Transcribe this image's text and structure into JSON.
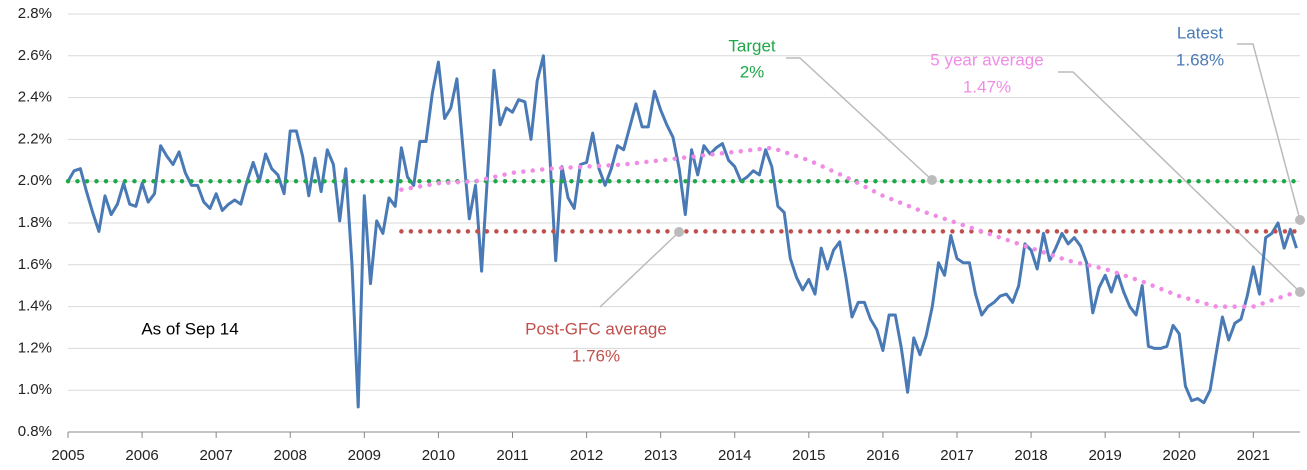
{
  "chart_data": {
    "type": "line",
    "xlim": [
      2005,
      2021.63
    ],
    "xticks": [
      2005,
      2006,
      2007,
      2008,
      2009,
      2010,
      2011,
      2012,
      2013,
      2014,
      2015,
      2016,
      2017,
      2018,
      2019,
      2020,
      2021
    ],
    "ylim": [
      0.8,
      2.8
    ],
    "yticks": [
      {
        "value": 0.8,
        "label": "0.8%"
      },
      {
        "value": 1.0,
        "label": "1.0%"
      },
      {
        "value": 1.2,
        "label": "1.2%"
      },
      {
        "value": 1.4,
        "label": "1.4%"
      },
      {
        "value": 1.6,
        "label": "1.6%"
      },
      {
        "value": 1.8,
        "label": "1.8%"
      },
      {
        "value": 2.0,
        "label": "2.0%"
      },
      {
        "value": 2.2,
        "label": "2.2%"
      },
      {
        "value": 2.4,
        "label": "2.4%"
      },
      {
        "value": 2.6,
        "label": "2.6%"
      },
      {
        "value": 2.8,
        "label": "2.8%"
      }
    ],
    "grid": true,
    "series": [
      {
        "color": "#4a7ab5",
        "style": "solid",
        "x": [
          2005,
          2005.083,
          2005.167,
          2005.25,
          2005.333,
          2005.417,
          2005.5,
          2005.583,
          2005.667,
          2005.75,
          2005.833,
          2005.917,
          2006,
          2006.083,
          2006.167,
          2006.25,
          2006.333,
          2006.417,
          2006.5,
          2006.583,
          2006.667,
          2006.75,
          2006.833,
          2006.917,
          2007,
          2007.083,
          2007.167,
          2007.25,
          2007.333,
          2007.417,
          2007.5,
          2007.583,
          2007.667,
          2007.75,
          2007.833,
          2007.917,
          2008,
          2008.083,
          2008.167,
          2008.25,
          2008.333,
          2008.417,
          2008.5,
          2008.583,
          2008.667,
          2008.75,
          2008.833,
          2008.917,
          2009,
          2009.083,
          2009.167,
          2009.25,
          2009.333,
          2009.417,
          2009.5,
          2009.583,
          2009.667,
          2009.75,
          2009.833,
          2009.917,
          2010,
          2010.083,
          2010.167,
          2010.25,
          2010.333,
          2010.417,
          2010.5,
          2010.583,
          2010.667,
          2010.75,
          2010.833,
          2010.917,
          2011,
          2011.083,
          2011.167,
          2011.25,
          2011.333,
          2011.417,
          2011.5,
          2011.583,
          2011.667,
          2011.75,
          2011.833,
          2011.917,
          2012,
          2012.083,
          2012.167,
          2012.25,
          2012.333,
          2012.417,
          2012.5,
          2012.583,
          2012.667,
          2012.75,
          2012.833,
          2012.917,
          2013,
          2013.083,
          2013.167,
          2013.25,
          2013.333,
          2013.417,
          2013.5,
          2013.583,
          2013.667,
          2013.75,
          2013.833,
          2013.917,
          2014,
          2014.083,
          2014.167,
          2014.25,
          2014.333,
          2014.417,
          2014.5,
          2014.583,
          2014.667,
          2014.75,
          2014.833,
          2014.917,
          2015,
          2015.083,
          2015.167,
          2015.25,
          2015.333,
          2015.417,
          2015.5,
          2015.583,
          2015.667,
          2015.75,
          2015.833,
          2015.917,
          2016,
          2016.083,
          2016.167,
          2016.25,
          2016.333,
          2016.417,
          2016.5,
          2016.583,
          2016.667,
          2016.75,
          2016.833,
          2016.917,
          2017,
          2017.083,
          2017.167,
          2017.25,
          2017.333,
          2017.417,
          2017.5,
          2017.583,
          2017.667,
          2017.75,
          2017.833,
          2017.917,
          2018,
          2018.083,
          2018.167,
          2018.25,
          2018.333,
          2018.417,
          2018.5,
          2018.583,
          2018.667,
          2018.75,
          2018.833,
          2018.917,
          2019,
          2019.083,
          2019.167,
          2019.25,
          2019.333,
          2019.417,
          2019.5,
          2019.583,
          2019.667,
          2019.75,
          2019.833,
          2019.917,
          2020,
          2020.083,
          2020.167,
          2020.25,
          2020.333,
          2020.417,
          2020.5,
          2020.583,
          2020.667,
          2020.75,
          2020.833,
          2020.917,
          2021,
          2021.083,
          2021.167,
          2021.25,
          2021.333,
          2021.417,
          2021.5,
          2021.583
        ],
        "values": [
          2.0,
          2.05,
          2.06,
          1.95,
          1.85,
          1.76,
          1.93,
          1.84,
          1.89,
          1.99,
          1.89,
          1.88,
          1.99,
          1.9,
          1.94,
          2.17,
          2.12,
          2.08,
          2.14,
          2.04,
          1.98,
          1.98,
          1.9,
          1.87,
          1.94,
          1.86,
          1.89,
          1.91,
          1.89,
          2.0,
          2.09,
          2.0,
          2.13,
          2.06,
          2.03,
          1.94,
          2.24,
          2.24,
          2.12,
          1.93,
          2.11,
          1.95,
          2.15,
          2.08,
          1.81,
          2.06,
          1.6,
          0.92,
          1.93,
          1.51,
          1.81,
          1.75,
          1.92,
          1.88,
          2.16,
          2.02,
          1.98,
          2.19,
          2.19,
          2.42,
          2.57,
          2.3,
          2.35,
          2.49,
          2.15,
          1.82,
          1.98,
          1.57,
          2.05,
          2.53,
          2.27,
          2.35,
          2.33,
          2.39,
          2.38,
          2.2,
          2.48,
          2.6,
          2.15,
          1.62,
          2.07,
          1.92,
          1.87,
          2.08,
          2.09,
          2.23,
          2.06,
          1.98,
          2.06,
          2.17,
          2.15,
          2.26,
          2.37,
          2.26,
          2.26,
          2.43,
          2.34,
          2.27,
          2.21,
          2.06,
          1.84,
          2.15,
          2.03,
          2.17,
          2.13,
          2.16,
          2.18,
          2.1,
          2.07,
          2.0,
          2.02,
          2.05,
          2.03,
          2.15,
          2.07,
          1.88,
          1.85,
          1.63,
          1.54,
          1.48,
          1.53,
          1.46,
          1.68,
          1.58,
          1.67,
          1.71,
          1.54,
          1.35,
          1.42,
          1.42,
          1.34,
          1.29,
          1.19,
          1.36,
          1.36,
          1.2,
          0.99,
          1.25,
          1.17,
          1.26,
          1.4,
          1.61,
          1.55,
          1.74,
          1.63,
          1.61,
          1.61,
          1.46,
          1.36,
          1.4,
          1.42,
          1.45,
          1.46,
          1.42,
          1.5,
          1.7,
          1.67,
          1.58,
          1.75,
          1.62,
          1.68,
          1.75,
          1.7,
          1.73,
          1.69,
          1.61,
          1.37,
          1.49,
          1.55,
          1.47,
          1.56,
          1.47,
          1.4,
          1.36,
          1.5,
          1.21,
          1.2,
          1.2,
          1.21,
          1.31,
          1.27,
          1.02,
          0.95,
          0.96,
          0.94,
          1.0,
          1.18,
          1.35,
          1.24,
          1.32,
          1.34,
          1.45,
          1.59,
          1.46,
          1.73,
          1.75,
          1.8,
          1.68,
          1.77,
          1.68
        ]
      },
      {
        "color": "#1fa84a",
        "style": "dotted",
        "x": [
          2005,
          2021.583
        ],
        "values": [
          2.0,
          2.0
        ]
      },
      {
        "color": "#c0504d",
        "style": "dotted",
        "x": [
          2009.5,
          2021.583
        ],
        "values": [
          1.76,
          1.76
        ]
      },
      {
        "color": "#f08ce6",
        "style": "dotted",
        "x": [
          2009.5,
          2010,
          2010.5,
          2011,
          2011.5,
          2012,
          2012.5,
          2013,
          2013.5,
          2014,
          2014.5,
          2015,
          2015.5,
          2016,
          2016.5,
          2017,
          2017.5,
          2018,
          2018.5,
          2019,
          2019.5,
          2020,
          2020.5,
          2021,
          2021.583
        ],
        "values": [
          1.96,
          1.99,
          2.0,
          2.04,
          2.06,
          2.07,
          2.08,
          2.1,
          2.12,
          2.14,
          2.16,
          2.1,
          2.02,
          1.93,
          1.86,
          1.8,
          1.74,
          1.68,
          1.62,
          1.58,
          1.52,
          1.45,
          1.4,
          1.4,
          1.47
        ]
      }
    ],
    "annotations": [
      {
        "text": "Target",
        "color": "#1fa84a"
      },
      {
        "text": "2%",
        "color": "#1fa84a"
      },
      {
        "text": "5 year average",
        "color": "#f08ce6"
      },
      {
        "text": "1.47%",
        "color": "#f08ce6"
      },
      {
        "text": "Latest",
        "color": "#4a7ab5"
      },
      {
        "text": "1.68%",
        "color": "#4a7ab5"
      },
      {
        "text": "Post-GFC average",
        "color": "#c0504d"
      },
      {
        "text": "1.76%",
        "color": "#c0504d"
      },
      {
        "text": "As of Sep 14",
        "color": "#000000"
      }
    ]
  }
}
